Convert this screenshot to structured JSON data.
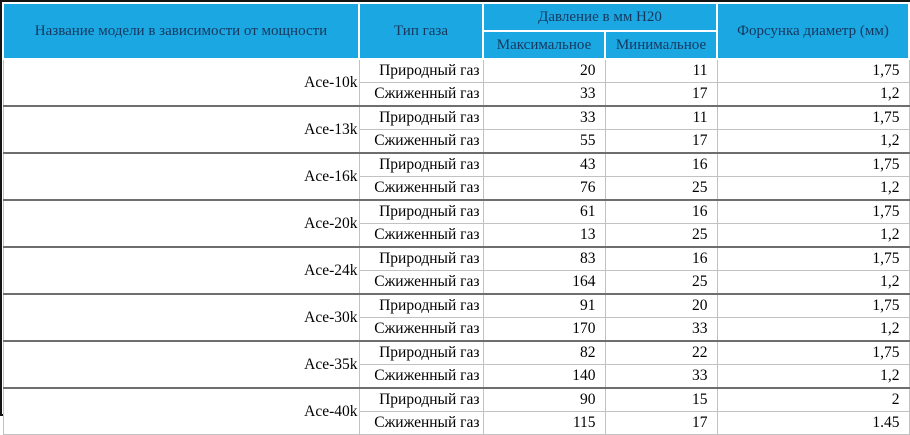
{
  "colors": {
    "header_bg": "#1BA8E2",
    "header_text": "#17375E",
    "outer_border": "#141414",
    "group_border": "#6E6E6E",
    "cell_border": "#C2C2C2"
  },
  "table": {
    "header": {
      "model_col": "Название модели в зависимости от мощности",
      "gas_col": "Тип газа",
      "pressure_group": "Давление в мм H20",
      "pressure_max": "Максимальное",
      "pressure_min": "Минимальное",
      "nozzle_col": "Форсунка диаметр (мм)"
    },
    "groups": [
      {
        "model": "Ace-10k",
        "rows": [
          {
            "gas": "Природный газ",
            "max": "20",
            "min": "11",
            "nozzle": "1,75"
          },
          {
            "gas": "Сжиженный газ",
            "max": "33",
            "min": "17",
            "nozzle": "1,2"
          }
        ]
      },
      {
        "model": "Ace-13k",
        "rows": [
          {
            "gas": "Природный газ",
            "max": "33",
            "min": "11",
            "nozzle": "1,75"
          },
          {
            "gas": "Сжиженный газ",
            "max": "55",
            "min": "17",
            "nozzle": "1,2"
          }
        ]
      },
      {
        "model": "Ace-16k",
        "rows": [
          {
            "gas": "Природный газ",
            "max": "43",
            "min": "16",
            "nozzle": "1,75"
          },
          {
            "gas": "Сжиженный газ",
            "max": "76",
            "min": "25",
            "nozzle": "1,2"
          }
        ]
      },
      {
        "model": "Ace-20k",
        "rows": [
          {
            "gas": "Природный газ",
            "max": "61",
            "min": "16",
            "nozzle": "1,75"
          },
          {
            "gas": "Сжиженный газ",
            "max": "13",
            "min": "25",
            "nozzle": "1,2"
          }
        ]
      },
      {
        "model": "Ace-24k",
        "rows": [
          {
            "gas": "Природный газ",
            "max": "83",
            "min": "16",
            "nozzle": "1,75"
          },
          {
            "gas": "Сжиженный газ",
            "max": "164",
            "min": "25",
            "nozzle": "1,2"
          }
        ]
      },
      {
        "model": "Ace-30k",
        "rows": [
          {
            "gas": "Природный газ",
            "max": "91",
            "min": "20",
            "nozzle": "1,75"
          },
          {
            "gas": "Сжиженный газ",
            "max": "170",
            "min": "33",
            "nozzle": "1,2"
          }
        ]
      },
      {
        "model": "Ace-35k",
        "rows": [
          {
            "gas": "Природный газ",
            "max": "82",
            "min": "22",
            "nozzle": "1,75"
          },
          {
            "gas": "Сжиженный газ",
            "max": "140",
            "min": "33",
            "nozzle": "1,2"
          }
        ]
      },
      {
        "model": "Ace-40k",
        "rows": [
          {
            "gas": "Природный газ",
            "max": "90",
            "min": "15",
            "nozzle": "2"
          },
          {
            "gas": "Сжиженный газ",
            "max": "115",
            "min": "17",
            "nozzle": "1.45"
          }
        ]
      }
    ]
  },
  "chart_data": {
    "type": "table",
    "title": "Давление в мм H20",
    "columns": [
      "Название модели в зависимости от мощности",
      "Тип газа",
      "Давление в мм H20 — Максимальное",
      "Давление в мм H20 — Минимальное",
      "Форсунка диаметр (мм)"
    ],
    "rows": [
      [
        "Ace-10k",
        "Природный газ",
        20,
        11,
        "1,75"
      ],
      [
        "Ace-10k",
        "Сжиженный газ",
        33,
        17,
        "1,2"
      ],
      [
        "Ace-13k",
        "Природный газ",
        33,
        11,
        "1,75"
      ],
      [
        "Ace-13k",
        "Сжиженный газ",
        55,
        17,
        "1,2"
      ],
      [
        "Ace-16k",
        "Природный газ",
        43,
        16,
        "1,75"
      ],
      [
        "Ace-16k",
        "Сжиженный газ",
        76,
        25,
        "1,2"
      ],
      [
        "Ace-20k",
        "Природный газ",
        61,
        16,
        "1,75"
      ],
      [
        "Ace-20k",
        "Сжиженный газ",
        13,
        25,
        "1,2"
      ],
      [
        "Ace-24k",
        "Природный газ",
        83,
        16,
        "1,75"
      ],
      [
        "Ace-24k",
        "Сжиженный газ",
        164,
        25,
        "1,2"
      ],
      [
        "Ace-30k",
        "Природный газ",
        91,
        20,
        "1,75"
      ],
      [
        "Ace-30k",
        "Сжиженный газ",
        170,
        33,
        "1,2"
      ],
      [
        "Ace-35k",
        "Природный газ",
        82,
        22,
        "1,75"
      ],
      [
        "Ace-35k",
        "Сжиженный газ",
        140,
        33,
        "1,2"
      ],
      [
        "Ace-40k",
        "Природный газ",
        90,
        15,
        "2"
      ],
      [
        "Ace-40k",
        "Сжиженный газ",
        115,
        17,
        "1.45"
      ]
    ]
  }
}
